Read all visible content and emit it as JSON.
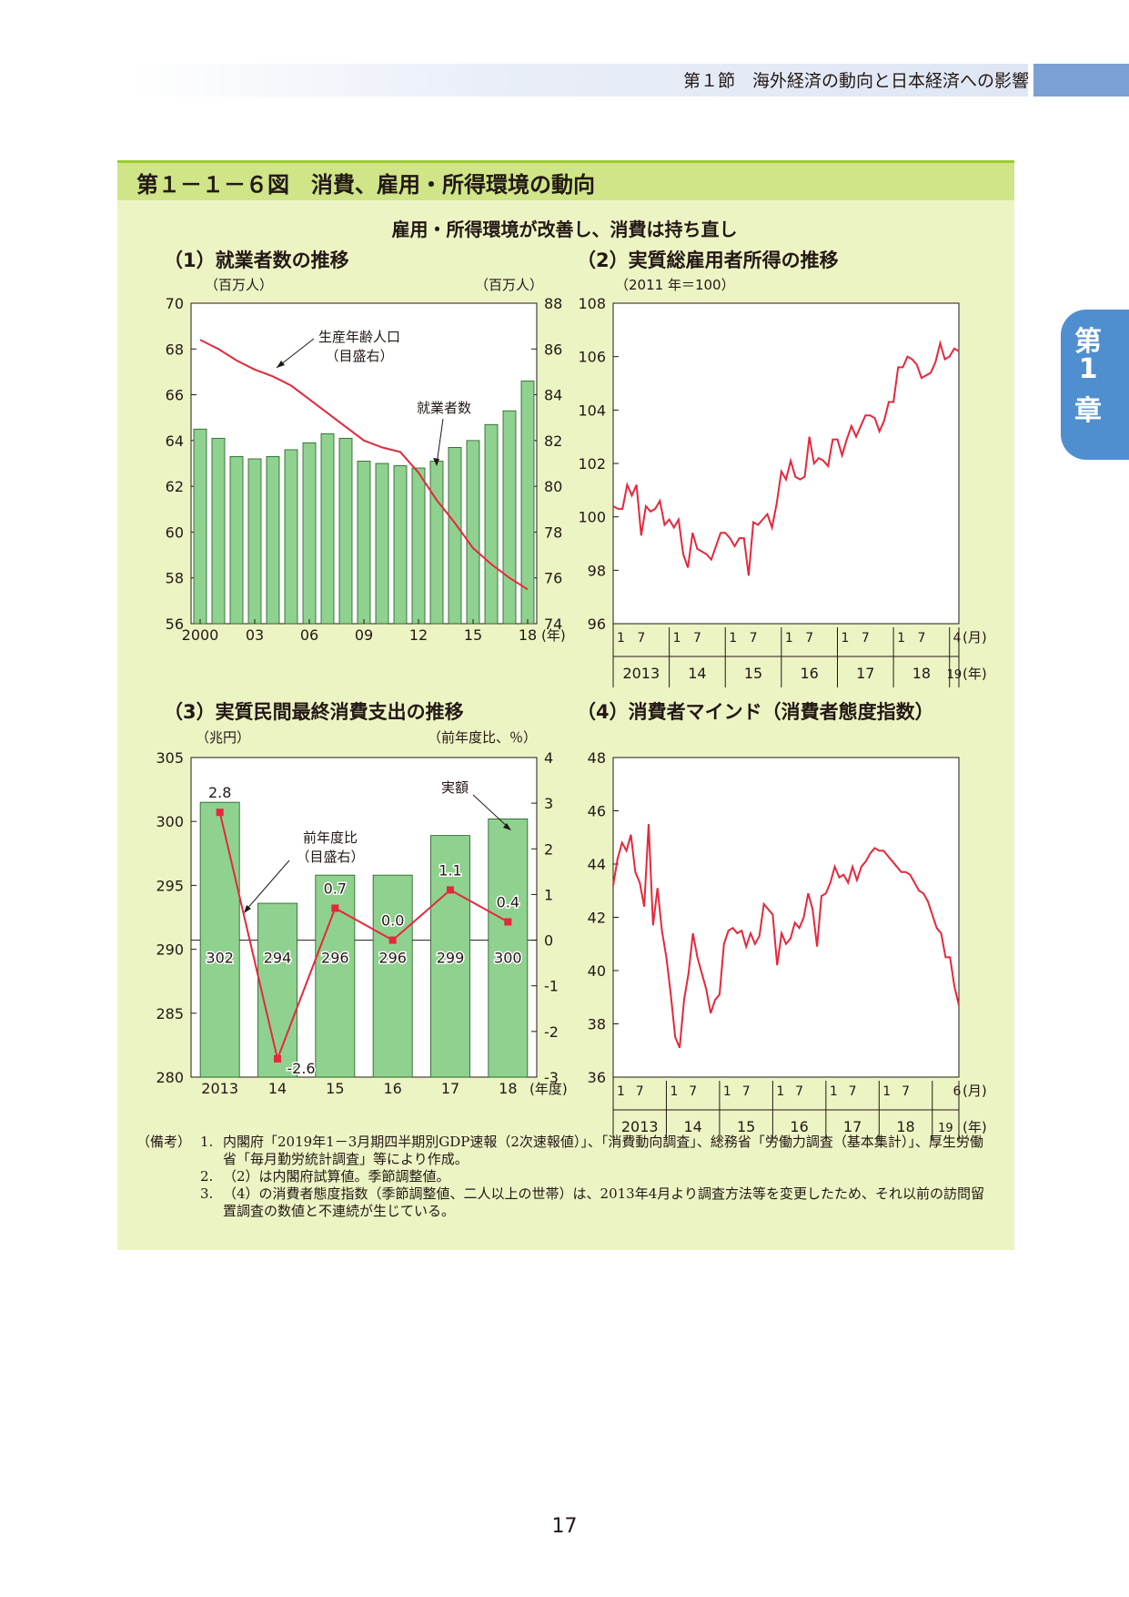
{
  "header": {
    "text": "第１節　海外経済の動向と日本経済への影響"
  },
  "chapter_tab": {
    "line1": "第",
    "line2": "1",
    "line3": "章"
  },
  "figure": {
    "title": "第１－１－６図　消費、雇用・所得環境の動向",
    "subtitle": "雇用・所得環境が改善し、消費は持ち直し"
  },
  "panels": {
    "p1": {
      "title": "（1）就業者数の推移",
      "left_unit": "（百万人）",
      "right_unit": "（百万人）"
    },
    "p2": {
      "title": "（2）実質総雇用者所得の推移",
      "unit": "（2011 年＝100）"
    },
    "p3": {
      "title": "（3）実質民間最終消費支出の推移",
      "left_unit": "（兆円）",
      "right_unit": "（前年度比、％）"
    },
    "p4": {
      "title": "（4）消費者マインド（消費者態度指数）"
    }
  },
  "chart_data": [
    {
      "type": "bar",
      "id": "employment",
      "categories": [
        "2000",
        "01",
        "02",
        "03",
        "04",
        "05",
        "06",
        "07",
        "08",
        "09",
        "10",
        "11",
        "12",
        "13",
        "14",
        "15",
        "16",
        "17",
        "18"
      ],
      "xtick_labels": [
        "2000",
        "03",
        "06",
        "09",
        "12",
        "15",
        "18"
      ],
      "x_unit_label": "(年)",
      "series": [
        {
          "name": "就業者数",
          "axis": "left",
          "type": "bar",
          "color": "#8fd18f",
          "values": [
            64.5,
            64.1,
            63.3,
            63.2,
            63.3,
            63.6,
            63.9,
            64.3,
            64.1,
            63.1,
            63.0,
            62.9,
            62.8,
            63.1,
            63.7,
            64.0,
            64.7,
            65.3,
            66.6
          ]
        },
        {
          "name": "生産年齢人口",
          "annotation": "（目盛右）",
          "axis": "right",
          "type": "line",
          "color": "#e5283c",
          "values": [
            86.4,
            86.0,
            85.5,
            85.1,
            84.8,
            84.4,
            83.8,
            83.2,
            82.6,
            82.0,
            81.7,
            81.5,
            80.6,
            79.4,
            78.4,
            77.3,
            76.6,
            76.0,
            75.5
          ]
        }
      ],
      "ylim_left": [
        56,
        70
      ],
      "yticks_left": [
        56,
        58,
        60,
        62,
        64,
        66,
        68,
        70
      ],
      "ylim_right": [
        74,
        88
      ],
      "yticks_right": [
        74,
        76,
        78,
        80,
        82,
        84,
        86,
        88
      ],
      "annotations": [
        "生産年齢人口",
        "（目盛右）",
        "就業者数"
      ]
    },
    {
      "type": "line",
      "id": "real_income",
      "x": "monthly 2013-01 to 2019-04",
      "series": [
        {
          "name": "実質総雇用者所得",
          "color": "#e5283c",
          "values": [
            100.4,
            100.3,
            100.3,
            101.2,
            100.8,
            101.2,
            99.3,
            100.4,
            100.2,
            100.3,
            100.6,
            99.7,
            99.9,
            99.6,
            99.9,
            98.6,
            98.1,
            99.4,
            98.8,
            98.7,
            98.6,
            98.4,
            98.9,
            99.4,
            99.4,
            99.2,
            98.9,
            99.2,
            99.2,
            97.8,
            99.8,
            99.7,
            99.9,
            100.1,
            99.6,
            100.5,
            101.7,
            101.4,
            102.1,
            101.5,
            101.4,
            101.5,
            103.0,
            102.0,
            102.2,
            102.1,
            101.9,
            102.9,
            102.9,
            102.3,
            102.9,
            103.4,
            103.0,
            103.4,
            103.8,
            103.8,
            103.7,
            103.2,
            103.6,
            104.3,
            104.3,
            105.6,
            105.6,
            106.0,
            105.9,
            105.7,
            105.2,
            105.3,
            105.4,
            105.8,
            106.5,
            105.9,
            106.0,
            106.3,
            106.2
          ]
        }
      ],
      "ylim": [
        96,
        108
      ],
      "yticks": [
        96,
        98,
        100,
        102,
        104,
        106,
        108
      ],
      "month_ticks": [
        "1",
        "7",
        "1",
        "7",
        "1",
        "7",
        "1",
        "7",
        "1",
        "7",
        "1",
        "7",
        "4"
      ],
      "year_labels": [
        "2013",
        "14",
        "15",
        "16",
        "17",
        "18",
        "19"
      ],
      "month_unit": "(月)",
      "year_unit": "(年)"
    },
    {
      "type": "bar",
      "id": "consumption",
      "categories": [
        "2013",
        "14",
        "15",
        "16",
        "17",
        "18"
      ],
      "x_unit_label": "(年度)",
      "series": [
        {
          "name": "実額",
          "axis": "left",
          "type": "bar",
          "color": "#8fd18f",
          "values": [
            301.5,
            293.6,
            295.8,
            295.8,
            298.9,
            300.2
          ],
          "labels": [
            "302",
            "294",
            "296",
            "296",
            "299",
            "300"
          ]
        },
        {
          "name": "前年度比",
          "annotation": "（目盛右）",
          "axis": "right",
          "type": "line",
          "color": "#e5283c",
          "values": [
            2.8,
            -2.6,
            0.7,
            0.0,
            1.1,
            0.4
          ],
          "labels": [
            "2.8",
            "-2.6",
            "0.7",
            "0.0",
            "1.1",
            "0.4"
          ]
        }
      ],
      "ylim_left": [
        280,
        305
      ],
      "yticks_left": [
        280,
        285,
        290,
        295,
        300,
        305
      ],
      "ylim_right": [
        -3,
        4
      ],
      "yticks_right": [
        "-3",
        "-2",
        "-1",
        "0",
        "1",
        "2",
        "3",
        "4"
      ],
      "annotations": [
        "実額",
        "前年度比",
        "（目盛右）"
      ]
    },
    {
      "type": "line",
      "id": "consumer_confidence",
      "x": "monthly 2013-01 to 2019-06",
      "series": [
        {
          "name": "消費者態度指数",
          "color": "#e5283c",
          "values": [
            43.2,
            44.2,
            44.8,
            44.5,
            45.1,
            43.7,
            43.3,
            42.4,
            45.5,
            41.7,
            43.1,
            41.5,
            40.5,
            39.1,
            37.5,
            37.1,
            38.9,
            39.9,
            41.4,
            40.5,
            39.9,
            39.3,
            38.4,
            38.9,
            39.1,
            41.0,
            41.5,
            41.6,
            41.4,
            41.5,
            40.9,
            41.4,
            41.0,
            41.3,
            42.5,
            42.3,
            42.1,
            40.2,
            41.4,
            41.0,
            41.2,
            41.8,
            41.6,
            42.0,
            42.9,
            42.3,
            40.9,
            42.8,
            42.9,
            43.3,
            43.9,
            43.5,
            43.6,
            43.3,
            43.9,
            43.4,
            43.9,
            44.1,
            44.4,
            44.6,
            44.5,
            44.5,
            44.3,
            44.1,
            43.9,
            43.7,
            43.7,
            43.6,
            43.3,
            43.0,
            42.9,
            42.6,
            42.1,
            41.6,
            41.4,
            40.5,
            40.5,
            39.4,
            38.7
          ]
        }
      ],
      "ylim": [
        36,
        48
      ],
      "yticks": [
        36,
        38,
        40,
        42,
        44,
        46,
        48
      ],
      "month_ticks": [
        "1",
        "7",
        "1",
        "7",
        "1",
        "7",
        "1",
        "7",
        "1",
        "7",
        "1",
        "7",
        "6"
      ],
      "year_labels": [
        "2013",
        "14",
        "15",
        "16",
        "17",
        "18",
        "19"
      ],
      "month_unit": "(月)",
      "year_unit": "(年)"
    }
  ],
  "notes": {
    "label": "（備考）",
    "items": [
      {
        "num": "1.",
        "text": "内閣府「2019年1－3月期四半期別GDP速報（2次速報値）」、「消費動向調査」、総務省「労働力調査（基本集計）」、厚生労働省「毎月勤労統計調査」等により作成。"
      },
      {
        "num": "2.",
        "text": "（2）は内閣府試算値。季節調整値。"
      },
      {
        "num": "3.",
        "text": "（4）の消費者態度指数（季節調整値、二人以上の世帯）は、2013年4月より調査方法等を変更したため、それ以前の訪問留置調査の数値と不連続が生じている。"
      }
    ]
  },
  "page_number": "17",
  "colors": {
    "bar": "#8fd18f",
    "line": "#e5283c",
    "panel_bg": "#ecf4c4",
    "title_bar": "#cfe587",
    "tab": "#4f8fd0"
  }
}
